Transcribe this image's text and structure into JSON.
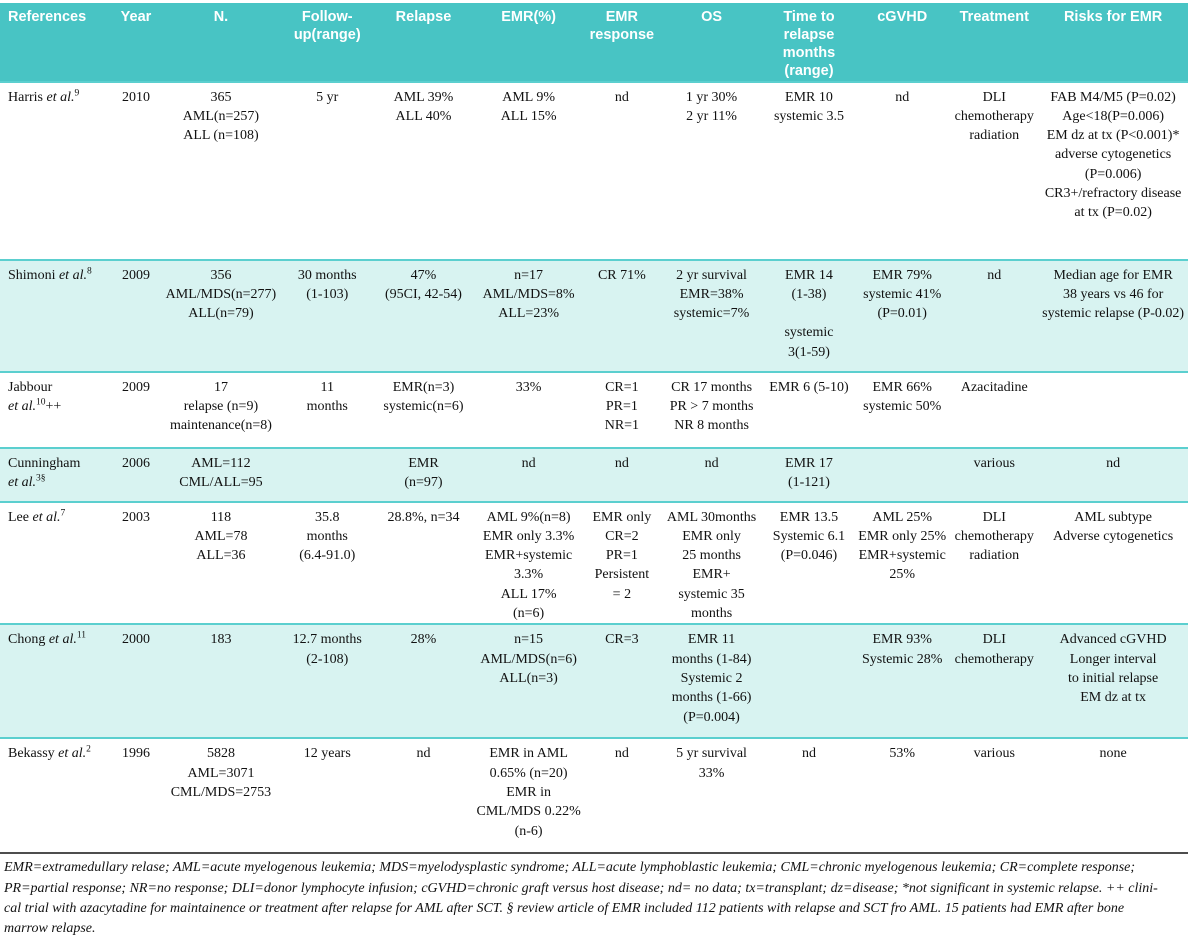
{
  "table": {
    "columns": [
      "References",
      "Year",
      "N.",
      [
        "Follow-",
        "up(range)"
      ],
      "Relapse",
      "EMR(%)",
      [
        "EMR",
        "response"
      ],
      "OS",
      [
        "Time to",
        "relapse months",
        "(range)"
      ],
      "cGVHD",
      "Treatment",
      "Risks for EMR"
    ],
    "rows": [
      {
        "ref": {
          "name": "Harris",
          "etal": "et al.",
          "sup": "9",
          "tail": ""
        },
        "cells": {
          "year": "2010",
          "n": [
            "365",
            "AML(n=257)",
            "ALL (n=108)"
          ],
          "followup": "5 yr",
          "relapse": [
            "AML 39%",
            "ALL 40%"
          ],
          "emr": [
            "AML 9%",
            "ALL 15%"
          ],
          "resp": "nd",
          "os": [
            "1 yr 30%",
            "2 yr 11%"
          ],
          "time": [
            "EMR 10",
            "systemic 3.5"
          ],
          "cgvhd": "nd",
          "tx": [
            "DLI",
            "chemotherapy",
            "radiation"
          ],
          "risks": [
            "FAB M4/M5 (P=0.02)",
            "Age<18(P=0.006)",
            "EM dz at tx (P<0.001)*",
            "adverse cytogenetics",
            "(P=0.006)",
            "CR3+/refractory disease",
            "at tx (P=0.02)"
          ]
        }
      },
      {
        "ref": {
          "name": "Shimoni",
          "etal": "et al.",
          "sup": "8",
          "tail": ""
        },
        "cells": {
          "year": "2009",
          "n": [
            "356",
            "AML/MDS(n=277)",
            "ALL(n=79)"
          ],
          "followup": [
            "30 months",
            "(1-103)"
          ],
          "relapse": [
            "47%",
            "(95CI, 42-54)"
          ],
          "emr": [
            "n=17",
            "AML/MDS=8%",
            "ALL=23%"
          ],
          "resp": "CR 71%",
          "os": [
            "2 yr survival",
            "EMR=38%",
            "systemic=7%"
          ],
          "time": [
            "EMR 14",
            "(1-38)",
            "",
            "systemic",
            "3(1-59)"
          ],
          "cgvhd": [
            "EMR 79%",
            "systemic 41%",
            "(P=0.01)"
          ],
          "tx": "nd",
          "risks": [
            "Median age for EMR",
            "38 years vs 46 for",
            "systemic relapse (P-0.02)"
          ]
        }
      },
      {
        "ref": {
          "name": "Jabbour",
          "etal": "et al.",
          "sup": "10",
          "tail": "++"
        },
        "cells": {
          "year": "2009",
          "n": [
            "17",
            "relapse (n=9)",
            "maintenance(n=8)"
          ],
          "followup": [
            "11",
            "months"
          ],
          "relapse": [
            "EMR(n=3)",
            "systemic(n=6)"
          ],
          "emr": "33%",
          "resp": [
            "CR=1",
            "PR=1",
            "NR=1"
          ],
          "os": [
            "CR 17 months",
            "PR > 7 months",
            "NR 8 months"
          ],
          "time": "EMR 6 (5-10)",
          "cgvhd": [
            "EMR 66%",
            "systemic 50%"
          ],
          "tx": "Azacitadine",
          "risks": ""
        }
      },
      {
        "ref": {
          "name": "Cunningham",
          "etal": "et al.",
          "sup": "3§",
          "tail": ""
        },
        "cells": {
          "year": "2006",
          "n": [
            "AML=112",
            "CML/ALL=95"
          ],
          "followup": "",
          "relapse": [
            "EMR",
            "(n=97)"
          ],
          "emr": "nd",
          "resp": "nd",
          "os": "nd",
          "time": [
            "EMR 17",
            "(1-121)"
          ],
          "cgvhd": "",
          "tx": "various",
          "risks": "nd"
        }
      },
      {
        "ref": {
          "name": "Lee",
          "etal": "et al.",
          "sup": "7",
          "tail": ""
        },
        "cells": {
          "year": "2003",
          "n": [
            "118",
            "AML=78",
            "ALL=36"
          ],
          "followup": [
            "35.8",
            "months",
            "(6.4-91.0)"
          ],
          "relapse": "28.8%, n=34",
          "emr": [
            "AML 9%(n=8)",
            "EMR only 3.3%",
            "EMR+systemic 3.3%",
            "ALL 17%",
            "(n=6)"
          ],
          "resp": [
            "EMR only",
            "CR=2",
            "PR=1",
            "Persistent",
            "= 2"
          ],
          "os": [
            "AML 30months",
            "EMR only",
            "25 months",
            "EMR+",
            "systemic 35 months"
          ],
          "time": [
            "EMR 13.5",
            "Systemic 6.1",
            "(P=0.046)"
          ],
          "cgvhd": [
            "AML 25%",
            "EMR only 25%",
            "EMR+systemic",
            "25%"
          ],
          "tx": [
            "DLI",
            "chemotherapy",
            "radiation"
          ],
          "risks": [
            "AML subtype",
            "Adverse cytogenetics"
          ]
        }
      },
      {
        "ref": {
          "name": "Chong",
          "etal": "et al.",
          "sup": "11",
          "tail": ""
        },
        "cells": {
          "year": "2000",
          "n": "183",
          "followup": [
            "12.7 months",
            "(2-108)"
          ],
          "relapse": "28%",
          "emr": [
            "n=15",
            "AML/MDS(n=6)",
            "ALL(n=3)"
          ],
          "resp": "CR=3",
          "os": [
            "EMR 11",
            "months (1-84)",
            "Systemic 2",
            "months (1-66)",
            "(P=0.004)"
          ],
          "time": "",
          "cgvhd": [
            "EMR 93%",
            "Systemic 28%"
          ],
          "tx": [
            "DLI",
            "chemotherapy"
          ],
          "risks": [
            "Advanced cGVHD",
            "Longer interval",
            "to initial relapse",
            "EM dz at tx"
          ]
        }
      },
      {
        "ref": {
          "name": "Bekassy",
          "etal": "et al.",
          "sup": "2",
          "tail": ""
        },
        "cells": {
          "year": "1996",
          "n": [
            "5828",
            "AML=3071",
            "CML/MDS=2753"
          ],
          "followup": "12 years",
          "relapse": "nd",
          "emr": [
            "EMR in AML",
            "0.65% (n=20)",
            "EMR in",
            "CML/MDS 0.22%",
            "(n-6)"
          ],
          "resp": "nd",
          "os": "5 yr survival 33%",
          "time": "nd",
          "cgvhd": "53%",
          "tx": "various",
          "risks": "none"
        }
      }
    ]
  },
  "footnote": {
    "lines": [
      "EMR=extramedullary relase; AML=acute myelogenous leukemia; MDS=myelodysplastic syndrome; ALL=acute lymphoblastic leukemia; CML=chronic myelogenous leukemia; CR=complete response;",
      "PR=partial response; NR=no response; DLI=donor lymphocyte infusion; cGVHD=chronic graft versus host disease; nd= no data; tx=transplant; dz=disease; *not significant in systemic relapse. ++ clini-",
      "cal trial with azacytadine for maintainence or treatment after relapse for AML after SCT. § review article of EMR included 112 patients with relapse and SCT fro AML. 15 patients had EMR after bone",
      "marrow relapse."
    ]
  },
  "colors": {
    "header_bg": "#48c4c4",
    "row_tint": "#d8f3f1",
    "row_divider": "#5bcfcf",
    "footnote_divider": "#4d4d4d",
    "header_text": "#ffffff"
  }
}
